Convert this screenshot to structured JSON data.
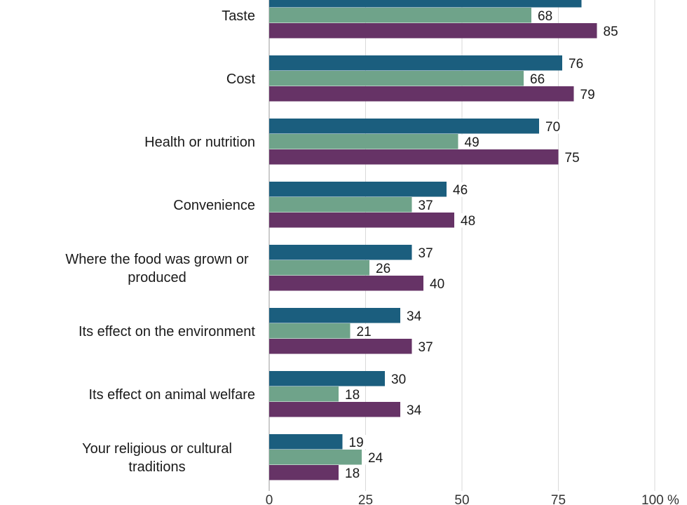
{
  "chart_data": {
    "type": "bar",
    "orientation": "horizontal",
    "categories": [
      "Taste",
      "Cost",
      "Health or nutrition",
      "Convenience",
      "Where the food was grown or produced",
      "Its effect on the environment",
      "Its effect on animal welfare",
      "Your religious or cultural traditions"
    ],
    "series": [
      {
        "color": "#1b5e7e",
        "values": [
          81,
          76,
          70,
          46,
          37,
          34,
          30,
          19
        ],
        "labels": [
          "",
          "76",
          "70",
          "46",
          "37",
          "34",
          "30",
          "19"
        ]
      },
      {
        "color": "#6fa38a",
        "values": [
          68,
          66,
          49,
          37,
          26,
          21,
          18,
          24
        ],
        "labels": [
          "68",
          "66",
          "49",
          "37",
          "26",
          "21",
          "18",
          "24"
        ]
      },
      {
        "color": "#663366",
        "values": [
          85,
          79,
          75,
          48,
          40,
          37,
          34,
          18
        ],
        "labels": [
          "85",
          "79",
          "75",
          "48",
          "40",
          "37",
          "34",
          "18"
        ]
      }
    ],
    "xlim": [
      0,
      100
    ],
    "xticks": [
      "0",
      "25",
      "50",
      "75",
      "100 %"
    ],
    "xtick_values": [
      0,
      25,
      50,
      75,
      100
    ],
    "grid": true
  }
}
